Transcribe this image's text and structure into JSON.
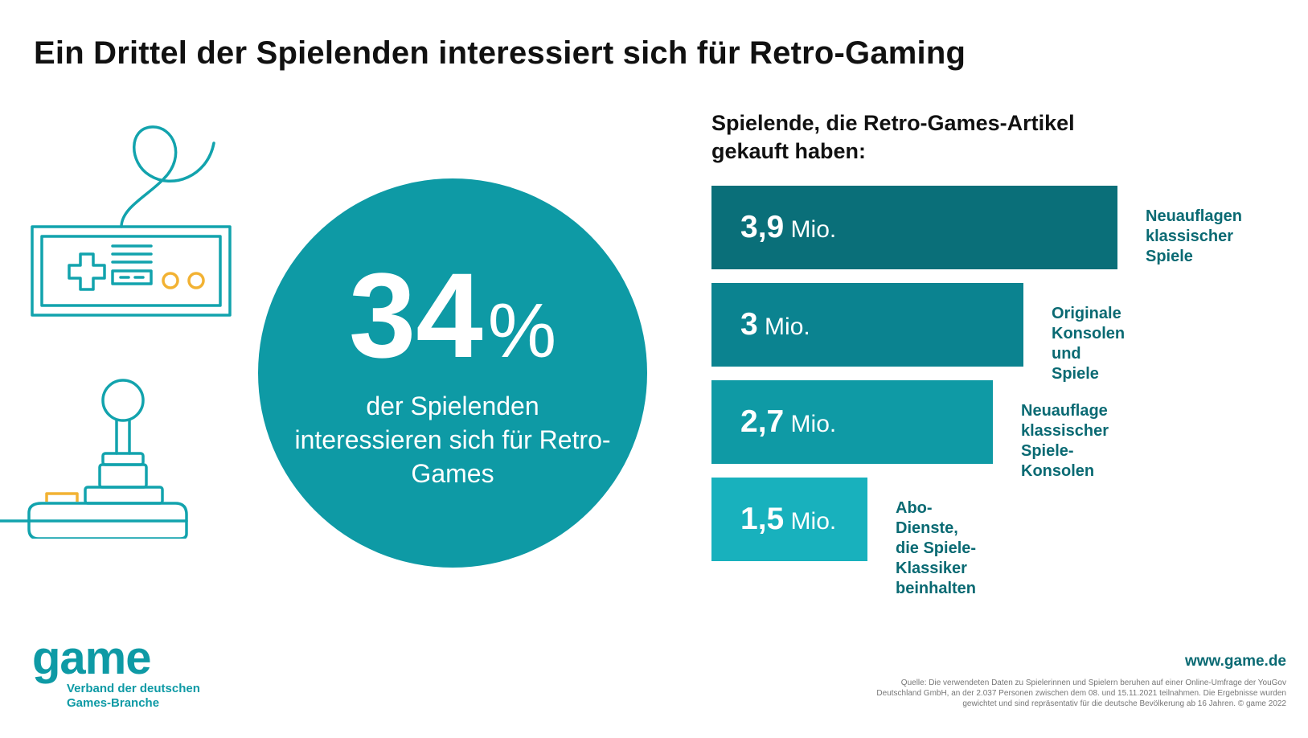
{
  "colors": {
    "teal": "#0e9aa5",
    "bar_1": "#0a6f79",
    "bar_2": "#0b8390",
    "bar_3": "#0f9aa5",
    "bar_4": "#18b1bd",
    "label": "#0a6a73",
    "icon_stroke": "#12a3ad",
    "icon_yellow": "#f2b233"
  },
  "header": {
    "title": "Ein Drittel der Spielenden interessiert sich für Retro-Gaming"
  },
  "highlight": {
    "number": "34",
    "unit": "%",
    "text": "der Spielenden interessieren sich für Retro-Games"
  },
  "chart_data": {
    "type": "bar",
    "orientation": "horizontal",
    "title": "Spielende, die Retro-Games-Artikel gekauft haben:",
    "unit": "Mio.",
    "categories": [
      "Neuauflagen klassischer Spiele",
      "Originale Konsolen und Spiele",
      "Neuauflage klassischer Spiele-Konsolen",
      "Abo-Dienste, die Spiele-Klassiker beinhalten"
    ],
    "values": [
      3.9,
      3.0,
      2.7,
      1.5
    ],
    "value_labels": [
      "3,9",
      "3",
      "2,7",
      "1,5"
    ],
    "category_lines": [
      [
        "Neuauflagen",
        "klassischer Spiele"
      ],
      [
        "Originale Konsolen",
        "und Spiele"
      ],
      [
        "Neuauflage klassischer",
        "Spiele-Konsolen"
      ],
      [
        "Abo-Dienste, die Spiele-",
        "Klassiker beinhalten"
      ]
    ],
    "xlim": [
      0,
      3.9
    ],
    "grid": false,
    "legend": "none"
  },
  "footer": {
    "logo": "game",
    "tagline_line1": "Verband der deutschen",
    "tagline_line2": "Games-Branche",
    "url": "www.game.de",
    "source_line1": "Quelle: Die verwendeten Daten zu Spielerinnen und Spielern beruhen auf einer Online-Umfrage der YouGov",
    "source_line2": "Deutschland GmbH, an der 2.037 Personen zwischen dem 08. und 15.11.2021 teilnahmen. Die Ergebnisse wurden",
    "source_line3": "gewichtet und sind repräsentativ für die deutsche Bevölkerung ab 16 Jahren. © game 2022"
  },
  "icons": [
    "gamepad-icon",
    "joystick-icon"
  ]
}
